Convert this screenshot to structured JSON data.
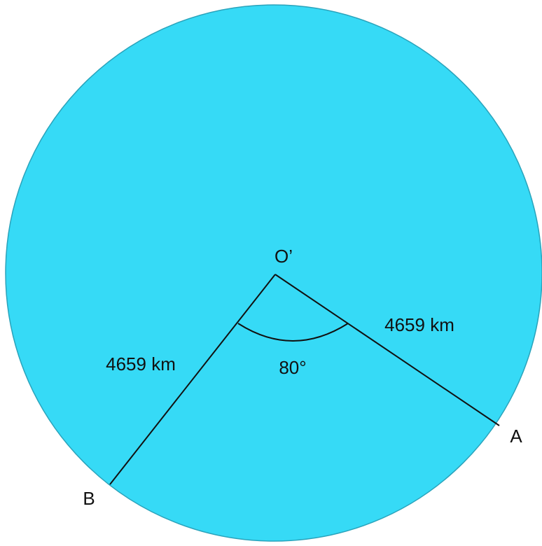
{
  "diagram": {
    "center_label": "O’",
    "points": [
      {
        "label": "A"
      },
      {
        "label": "B"
      }
    ],
    "radius_labels": [
      "4659 km",
      "4659 km"
    ],
    "angle_label": "80°"
  }
}
